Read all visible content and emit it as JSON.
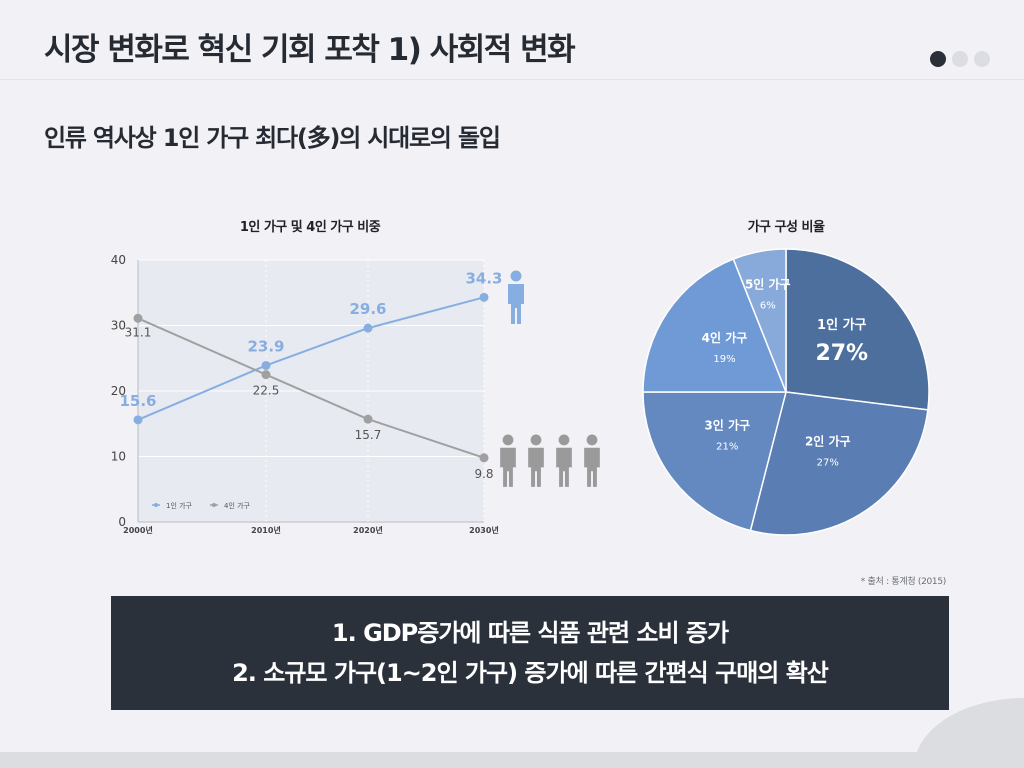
{
  "slide": {
    "title": "시장 변화로 혁신 기회 포착 1) 사회적 변화",
    "subtitle": "인류 역사상 1인 가구 최다(多)의 시대로의 돌입",
    "source": "* 출처 : 통계청 (2015)",
    "summary_lines": [
      "1. GDP증가에 따른 식품 관련 소비 증가",
      "2. 소규모 가구(1~2인 가구) 증가에 따른 간편식 구매의 확산"
    ],
    "pagination": {
      "total": 3,
      "active": 0
    }
  },
  "colors": {
    "one_person": "#86aee0",
    "four_person": "#a0a0a0",
    "plot_bg": "#e8eaf2",
    "summary_bg": "#2b313b",
    "pie_1": "#4d6f9e",
    "pie_2": "#5a7eb3",
    "pie_3": "#6389c0",
    "pie_4": "#6f9ad6",
    "pie_5": "#88aadb"
  },
  "chart_data": [
    {
      "type": "line",
      "title": "1인 가구 및 4인 가구 비중",
      "categories": [
        "2000년",
        "2010년",
        "2020년",
        "2030년"
      ],
      "ylim": [
        0,
        40
      ],
      "yticks": [
        0,
        10,
        20,
        30,
        40
      ],
      "grid": true,
      "legend_position": "bottom-left",
      "icons": [
        "person-icon",
        "family-icon"
      ],
      "series": [
        {
          "name": "1인 가구",
          "values": [
            15.6,
            23.9,
            29.6,
            34.3
          ],
          "labels": [
            "15.6",
            "23.9",
            "29.6",
            "34.3"
          ]
        },
        {
          "name": "4인 가구",
          "values": [
            31.1,
            22.5,
            15.7,
            9.8
          ],
          "labels": [
            "31.1",
            "22.5",
            "15.7",
            "9.8"
          ]
        }
      ]
    },
    {
      "type": "pie",
      "title": "가구 구성 비율",
      "slices": [
        {
          "label": "1인 가구",
          "value": 27,
          "text": "27%"
        },
        {
          "label": "2인 가구",
          "value": 27,
          "text": "27%"
        },
        {
          "label": "3인 가구",
          "value": 21,
          "text": "21%"
        },
        {
          "label": "4인 가구",
          "value": 19,
          "text": "19%"
        },
        {
          "label": "5인 가구",
          "value": 6,
          "text": "6%"
        }
      ]
    }
  ]
}
